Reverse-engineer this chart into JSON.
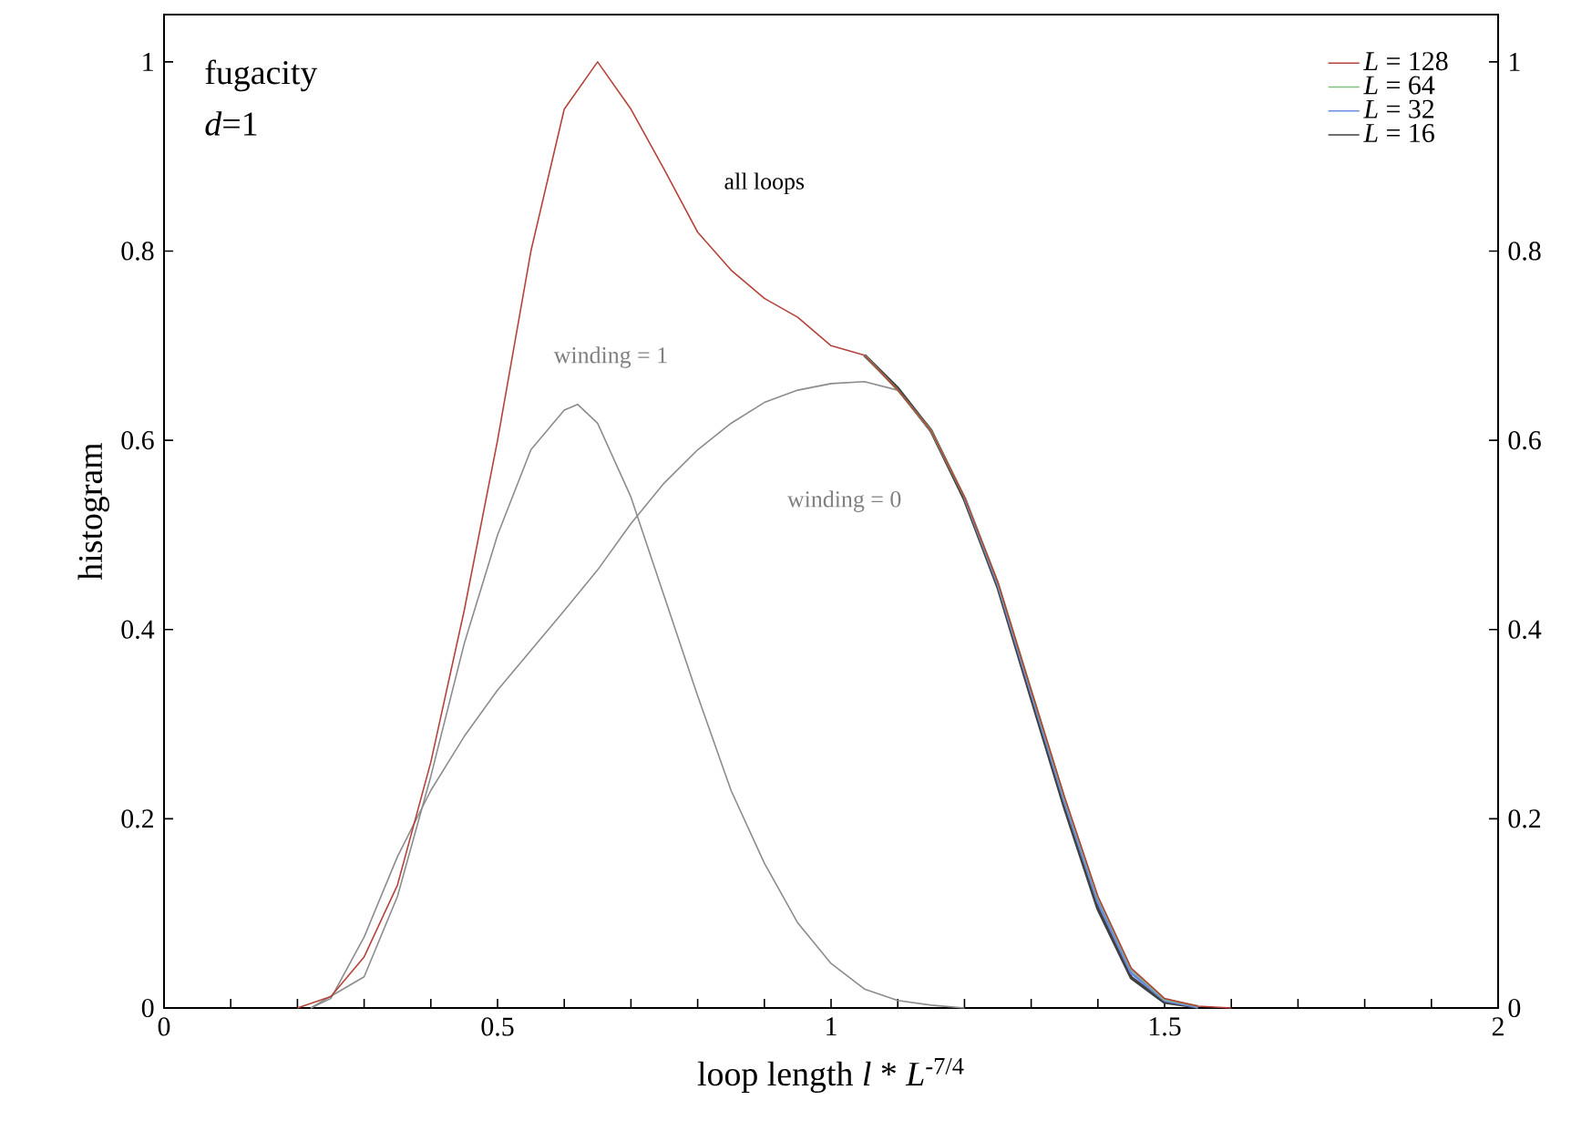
{
  "chart_data": {
    "type": "line",
    "xlabel": "loop length   *l* * *L*$^{-7/4}$",
    "ylabel": "histogram",
    "xlim": [
      0,
      2
    ],
    "ylim": [
      0,
      1.05
    ],
    "y2lim": [
      0,
      1.05
    ],
    "xticks": [
      0,
      {
        "value": 0.1,
        "label": null
      },
      {
        "value": 0.2,
        "label": null
      },
      {
        "value": 0.3,
        "label": null
      },
      {
        "value": 0.4,
        "label": null
      },
      0.5,
      {
        "value": 0.6,
        "label": null
      },
      {
        "value": 0.7,
        "label": null
      },
      {
        "value": 0.8,
        "label": null
      },
      {
        "value": 0.9,
        "label": null
      },
      1,
      {
        "value": 1.1,
        "label": null
      },
      {
        "value": 1.2,
        "label": null
      },
      {
        "value": 1.3,
        "label": null
      },
      {
        "value": 1.4,
        "label": null
      },
      1.5,
      {
        "value": 1.6,
        "label": null
      },
      {
        "value": 1.7,
        "label": null
      },
      {
        "value": 1.8,
        "label": null
      },
      {
        "value": 1.9,
        "label": null
      },
      2
    ],
    "yticks": [
      0,
      0.2,
      0.4,
      0.6,
      0.8,
      1
    ],
    "y2ticks": [
      0,
      0.2,
      0.4,
      0.6,
      0.8,
      1
    ],
    "x": [
      0.2,
      0.25,
      0.3,
      0.35,
      0.4,
      0.45,
      0.5,
      0.55,
      0.6,
      0.65,
      0.7,
      0.75,
      0.8,
      0.85,
      0.9,
      0.95,
      1.0,
      1.05,
      1.1,
      1.15,
      1.2,
      1.25,
      1.3,
      1.35,
      1.4,
      1.45,
      1.5,
      1.55,
      1.6
    ],
    "series": [
      {
        "name": "*L* = 128",
        "color": "#b5423a",
        "values": [
          0,
          0.012,
          0.054,
          0.13,
          0.26,
          0.42,
          0.6,
          0.8,
          0.95,
          1.0,
          0.95,
          0.886,
          0.82,
          0.78,
          0.75,
          0.73,
          0.7,
          0.69,
          0.653,
          0.61,
          0.54,
          0.45,
          0.336,
          0.223,
          0.118,
          0.042,
          0.01,
          0.002,
          0
        ]
      },
      {
        "name": "*L* = 64",
        "color": "#7fbf7f",
        "values": [
          null,
          null,
          null,
          null,
          null,
          null,
          null,
          null,
          null,
          null,
          null,
          null,
          null,
          null,
          null,
          null,
          null,
          0.69,
          0.653,
          0.61,
          0.54,
          0.45,
          0.336,
          0.222,
          0.117,
          0.041,
          0.009,
          0.002,
          null
        ]
      },
      {
        "name": "*L* = 32",
        "color": "#6a8be0",
        "values": [
          null,
          null,
          null,
          null,
          null,
          null,
          null,
          null,
          null,
          null,
          null,
          null,
          null,
          null,
          null,
          null,
          null,
          null,
          null,
          null,
          0.54,
          0.448,
          0.333,
          0.218,
          0.112,
          0.037,
          0.008,
          0.001,
          null
        ]
      },
      {
        "name": "*L* = 16",
        "color": "#404040",
        "values": [
          null,
          null,
          null,
          null,
          null,
          null,
          null,
          null,
          null,
          null,
          null,
          null,
          null,
          null,
          null,
          null,
          null,
          0.69,
          0.655,
          0.61,
          0.538,
          0.445,
          0.328,
          0.212,
          0.105,
          0.032,
          0.006,
          0.001,
          null
        ]
      },
      {
        "color": "#8c8c8c",
        "x": [
          0.22,
          0.3,
          0.35,
          0.4,
          0.45,
          0.5,
          0.55,
          0.6,
          0.62,
          0.65,
          0.7,
          0.75,
          0.8,
          0.85,
          0.9,
          0.95,
          1.0,
          1.05,
          1.1,
          1.15,
          1.2
        ],
        "values": [
          0,
          0.033,
          0.118,
          0.245,
          0.385,
          0.5,
          0.59,
          0.632,
          0.638,
          0.618,
          0.54,
          0.435,
          0.33,
          0.23,
          0.153,
          0.09,
          0.047,
          0.02,
          0.008,
          0.003,
          0
        ]
      },
      {
        "color": "#8c8c8c",
        "x": [
          0.22,
          0.25,
          0.3,
          0.35,
          0.4,
          0.45,
          0.5,
          0.55,
          0.6,
          0.65,
          0.7,
          0.75,
          0.8,
          0.85,
          0.9,
          0.95,
          1.0,
          1.05,
          1.1,
          1.15,
          1.2,
          1.25,
          1.3,
          1.35,
          1.4,
          1.45,
          1.5,
          1.55
        ],
        "values": [
          0,
          0.01,
          0.075,
          0.16,
          0.23,
          0.287,
          0.336,
          0.378,
          0.42,
          0.463,
          0.512,
          0.555,
          0.59,
          0.618,
          0.64,
          0.653,
          0.66,
          0.662,
          0.653,
          0.61,
          0.535,
          0.445,
          0.33,
          0.22,
          0.115,
          0.04,
          0.008,
          0
        ]
      }
    ],
    "legend": "top right",
    "marker": "none",
    "line_style": "solid",
    "annotations": [
      "fugacity",
      "*d*=1",
      "all loops",
      "winding = 1",
      "winding = 0"
    ]
  }
}
